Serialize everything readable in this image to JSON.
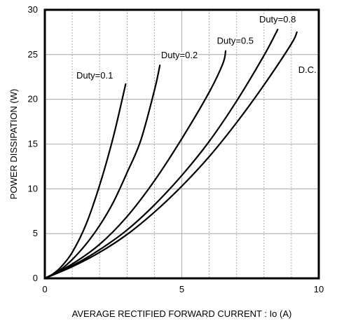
{
  "chart_data": {
    "type": "line",
    "title": "",
    "xlabel": "AVERAGE  RECTIFIED  FORWARD  CURRENT :  Io  (A)",
    "ylabel": "POWER  DISSIPATION  (W)",
    "xlim": [
      0,
      10
    ],
    "ylim": [
      0,
      30
    ],
    "x_ticks": [
      0,
      5,
      10
    ],
    "y_ticks": [
      0,
      5,
      10,
      15,
      20,
      25,
      30
    ],
    "x_minor_step": 1,
    "grid": true,
    "series": [
      {
        "name": "Duty=0.1",
        "x": [
          0,
          0.3,
          0.6,
          1.0,
          1.5,
          2.0,
          2.5,
          2.95
        ],
        "y": [
          0,
          0.5,
          1.3,
          2.9,
          6.0,
          10.4,
          15.8,
          21.7
        ]
      },
      {
        "name": "Duty=0.2",
        "x": [
          0,
          0.5,
          1.0,
          1.5,
          2.0,
          2.5,
          3.0,
          3.5,
          4.0,
          4.2
        ],
        "y": [
          0,
          0.8,
          2.1,
          3.8,
          5.9,
          8.5,
          11.8,
          15.4,
          21.0,
          23.8
        ]
      },
      {
        "name": "Duty=0.5",
        "x": [
          0,
          1,
          2,
          3,
          4,
          5,
          6,
          6.5,
          6.6
        ],
        "y": [
          0,
          1.6,
          3.8,
          6.9,
          10.9,
          15.6,
          20.8,
          24.0,
          25.4
        ]
      },
      {
        "name": "Duty=0.8",
        "x": [
          0,
          1,
          2,
          3,
          4,
          5,
          6,
          7,
          8,
          8.5
        ],
        "y": [
          0,
          1.4,
          3.2,
          5.4,
          8.2,
          11.5,
          15.3,
          19.8,
          24.9,
          27.8
        ]
      },
      {
        "name": "D.C.",
        "x": [
          0,
          1,
          2,
          3,
          4,
          5,
          6,
          7,
          8,
          9,
          9.2
        ],
        "y": [
          0,
          1.3,
          2.9,
          4.9,
          7.4,
          10.3,
          13.6,
          17.4,
          21.6,
          26.2,
          27.5
        ]
      }
    ]
  }
}
